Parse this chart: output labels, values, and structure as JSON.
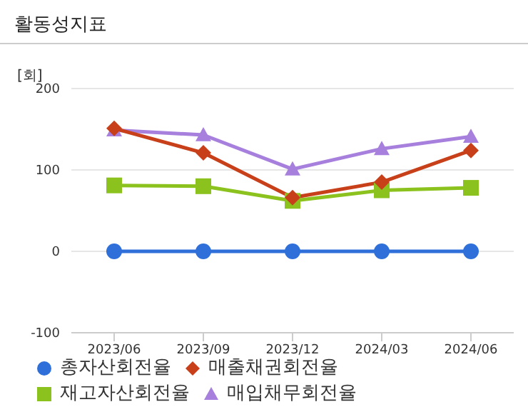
{
  "chart_data": {
    "type": "line",
    "title": "활동성지표",
    "ylabel": "[회]",
    "categories": [
      "2023/06",
      "2023/09",
      "2023/12",
      "2024/03",
      "2024/06"
    ],
    "series": [
      {
        "name": "총자산회전율",
        "color": "#2e6fd9",
        "marker": "circle",
        "values": [
          0,
          0,
          0,
          0,
          0
        ]
      },
      {
        "name": "매출채권회전율",
        "color": "#c8401a",
        "marker": "diamond",
        "values": [
          151,
          121,
          66,
          85,
          124
        ]
      },
      {
        "name": "재고자산회전율",
        "color": "#8cc21e",
        "marker": "square",
        "values": [
          81,
          80,
          62,
          75,
          78
        ]
      },
      {
        "name": "매입채무회전율",
        "color": "#a77fdc",
        "marker": "triangle",
        "values": [
          149,
          143,
          101,
          126,
          141
        ]
      }
    ],
    "ylim": [
      -100,
      200
    ],
    "yticks": [
      -100,
      0,
      100,
      200
    ],
    "grid": "y",
    "legend": "bottom"
  }
}
